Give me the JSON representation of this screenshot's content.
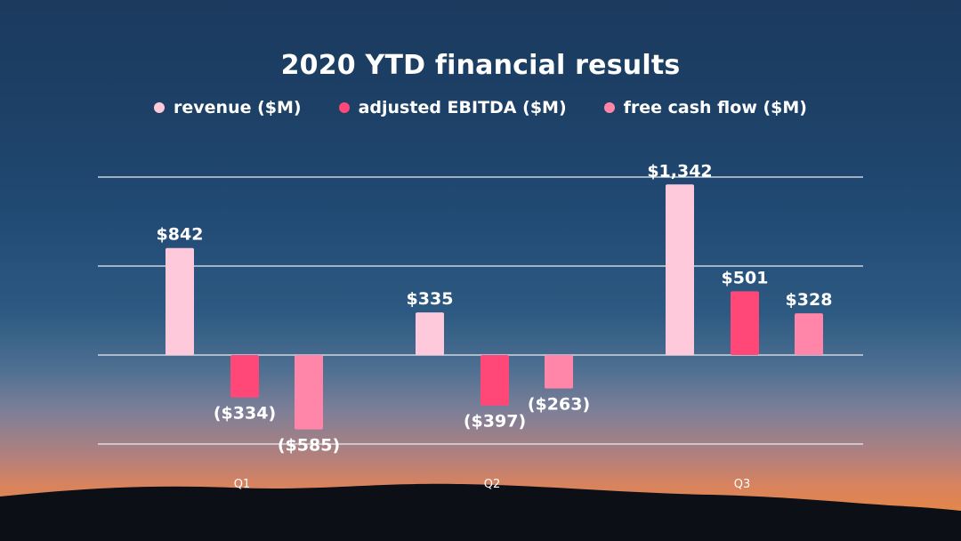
{
  "chart_data": {
    "type": "bar",
    "title": "2020 YTD financial results",
    "categories": [
      "Q1",
      "Q2",
      "Q3"
    ],
    "series": [
      {
        "name": "revenue ($M)",
        "color": "#ffc9dc",
        "values": [
          842,
          335,
          1342
        ],
        "labels": [
          "$842",
          "$335",
          "$1,342"
        ]
      },
      {
        "name": "adjusted EBITDA ($M)",
        "color": "#ff4778",
        "values": [
          -334,
          -397,
          501
        ],
        "labels": [
          "($334)",
          "($397)",
          "$501"
        ]
      },
      {
        "name": "free cash flow ($M)",
        "color": "#ff86a8",
        "values": [
          -585,
          -263,
          328
        ],
        "labels": [
          "($585)",
          "($263)",
          "$328"
        ]
      }
    ],
    "ylim": [
      -700,
      1400
    ],
    "gridlines": [
      -700,
      0,
      700,
      1400
    ],
    "grid": true,
    "legend": "top-center"
  }
}
